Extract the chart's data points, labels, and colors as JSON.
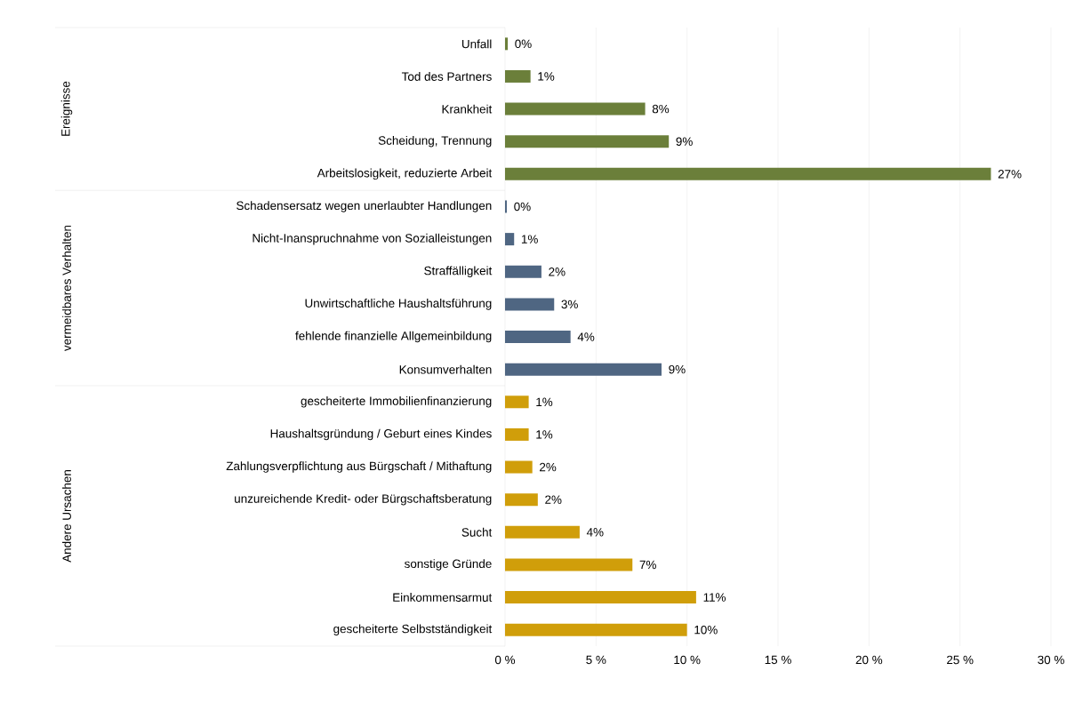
{
  "chart_data": {
    "type": "bar",
    "orientation": "horizontal",
    "categories": [
      "Unfall",
      "Tod des Partners",
      "Krankheit",
      "Scheidung, Trennung",
      "Arbeitslosigkeit, reduzierte Arbeit",
      "Schadensersatz wegen unerlaubter Handlungen",
      "Nicht-Inanspruchnahme von Sozialleistungen",
      "Straffälligkeit",
      "Unwirtschaftliche Haushaltsführung",
      "fehlende finanzielle Allgemeinbildung",
      "Konsumverhalten",
      "gescheiterte Immobilienfinanzierung",
      "Haushaltsgründung / Geburt eines Kindes",
      "Zahlungsverpflichtung aus Bürgschaft / Mithaftung",
      "unzureichende Kredit- oder Bürgschaftsberatung",
      "Sucht",
      "sonstige Gründe",
      "Einkommensarmut",
      "gescheiterte Selbstständigkeit"
    ],
    "series": [
      {
        "color": "#6b7f3a",
        "values": [
          0.15,
          1.4,
          7.7,
          9.0,
          26.7,
          null,
          null,
          null,
          null,
          null,
          null,
          null,
          null,
          null,
          null,
          null,
          null,
          null,
          null
        ],
        "value_labels": [
          "0%",
          "1%",
          "8%",
          "9%",
          "27%",
          null,
          null,
          null,
          null,
          null,
          null,
          null,
          null,
          null,
          null,
          null,
          null,
          null,
          null
        ]
      },
      {
        "color": "#4f6682",
        "values": [
          null,
          null,
          null,
          null,
          null,
          0.1,
          0.5,
          2.0,
          2.7,
          3.6,
          8.6,
          null,
          null,
          null,
          null,
          null,
          null,
          null,
          null
        ],
        "value_labels": [
          null,
          null,
          null,
          null,
          null,
          "0%",
          "1%",
          "2%",
          "3%",
          "4%",
          "9%",
          null,
          null,
          null,
          null,
          null,
          null,
          null,
          null
        ]
      },
      {
        "color": "#d09e0a",
        "values": [
          null,
          null,
          null,
          null,
          null,
          null,
          null,
          null,
          null,
          null,
          null,
          1.3,
          1.3,
          1.5,
          1.8,
          4.1,
          7.0,
          10.5,
          10.0
        ],
        "value_labels": [
          null,
          null,
          null,
          null,
          null,
          null,
          null,
          null,
          null,
          null,
          null,
          "1%",
          "1%",
          "2%",
          "2%",
          "4%",
          "7%",
          "11%",
          "10%"
        ]
      }
    ],
    "xlim": [
      0,
      30
    ],
    "xticks": [
      {
        "value": 0,
        "label": "0 %"
      },
      {
        "value": 5,
        "label": "5 %"
      },
      {
        "value": 10,
        "label": "10 %"
      },
      {
        "value": 15,
        "label": "15 %"
      },
      {
        "value": 20,
        "label": "20 %"
      },
      {
        "value": 25,
        "label": "25 %"
      },
      {
        "value": 30,
        "label": "30 %"
      }
    ],
    "annotations": [
      "Ereignisse",
      "vermeidbares Verhalten",
      "Andere Ursachen"
    ],
    "grid": "x"
  }
}
